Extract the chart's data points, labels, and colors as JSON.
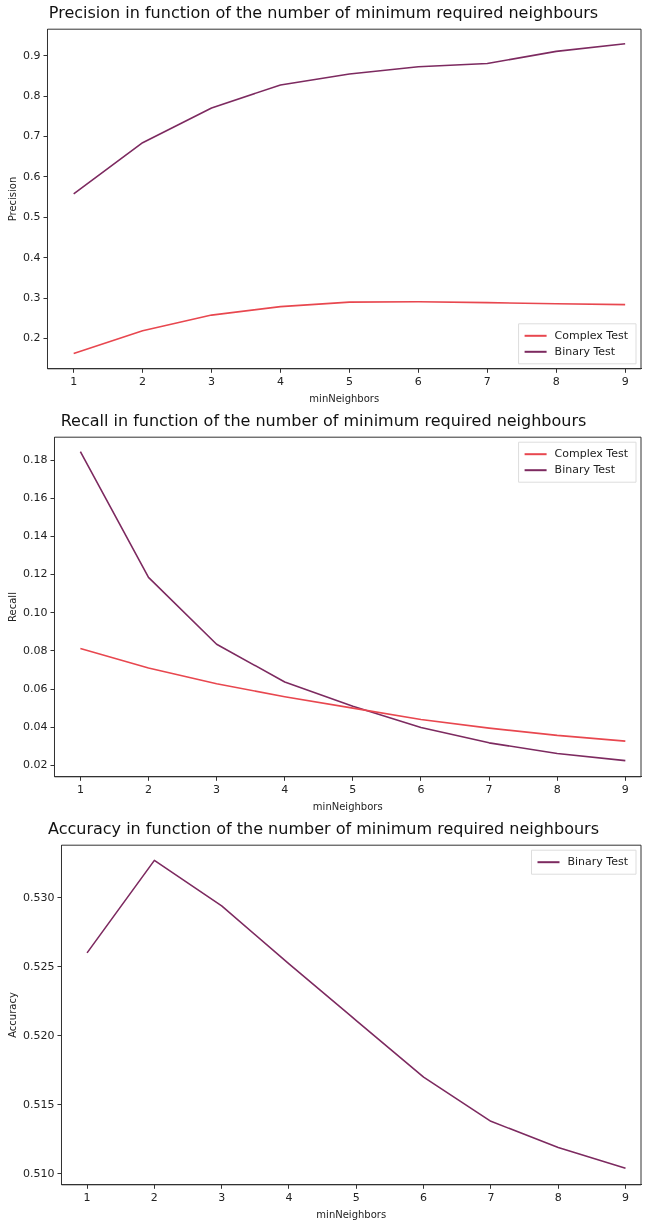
{
  "chart_data": [
    {
      "type": "line",
      "title": "Precision in function of the number of minimum required neighbours",
      "xlabel": "minNeighbors",
      "ylabel": "Precision",
      "x": [
        1,
        2,
        3,
        4,
        5,
        6,
        7,
        8,
        9
      ],
      "xlim": [
        0.62,
        9.23
      ],
      "xticks": [
        1,
        2,
        3,
        4,
        5,
        6,
        7,
        8,
        9
      ],
      "ylim": [
        0.125,
        0.966
      ],
      "yticks": [
        0.2,
        0.3,
        0.4,
        0.5,
        0.6,
        0.7,
        0.8,
        0.9
      ],
      "grid": false,
      "legend": "bottom right",
      "series": [
        {
          "name": "Complex Test",
          "color": "#e8474f",
          "values": [
            0.163,
            0.219,
            0.258,
            0.279,
            0.29,
            0.291,
            0.289,
            0.286,
            0.284
          ]
        },
        {
          "name": "Binary Test",
          "color": "#7d2a60",
          "values": [
            0.558,
            0.685,
            0.771,
            0.828,
            0.855,
            0.873,
            0.881,
            0.911,
            0.93
          ]
        }
      ]
    },
    {
      "type": "line",
      "title": "Recall in function of the number of minimum required neighbours",
      "xlabel": "minNeighbors",
      "ylabel": "Recall",
      "x": [
        1,
        2,
        3,
        4,
        5,
        6,
        7,
        8,
        9
      ],
      "xlim": [
        0.62,
        9.23
      ],
      "xticks": [
        1,
        2,
        3,
        4,
        5,
        6,
        7,
        8,
        9
      ],
      "ylim": [
        0.014,
        0.192
      ],
      "yticks": [
        {
          "value": 0.02,
          "label": "0.02"
        },
        {
          "value": 0.04,
          "label": "0.04"
        },
        {
          "value": 0.06,
          "label": "0.06"
        },
        {
          "value": 0.08,
          "label": "0.08"
        },
        {
          "value": 0.1,
          "label": "0.10"
        },
        {
          "value": 0.12,
          "label": "0.12"
        },
        {
          "value": 0.14,
          "label": "0.14"
        },
        {
          "value": 0.16,
          "label": "0.16"
        },
        {
          "value": 0.18,
          "label": "0.18"
        }
      ],
      "grid": false,
      "legend": "top right",
      "series": [
        {
          "name": "Complex Test",
          "color": "#e8474f",
          "values": [
            0.0812,
            0.071,
            0.0628,
            0.056,
            0.05,
            0.044,
            0.0395,
            0.0357,
            0.0327
          ]
        },
        {
          "name": "Binary Test",
          "color": "#7d2a60",
          "values": [
            0.1845,
            0.1185,
            0.0835,
            0.0637,
            0.051,
            0.0398,
            0.0318,
            0.0262,
            0.0225
          ]
        }
      ]
    },
    {
      "type": "line",
      "title": "Accuracy in function of the number of minimum required neighbours",
      "xlabel": "minNeighbors",
      "ylabel": "Accuracy",
      "x": [
        1,
        2,
        3,
        4,
        5,
        6,
        7,
        8,
        9
      ],
      "xlim": [
        0.62,
        9.23
      ],
      "xticks": [
        1,
        2,
        3,
        4,
        5,
        6,
        7,
        8,
        9
      ],
      "ylim": [
        0.5092,
        0.5338
      ],
      "yticks": [
        {
          "value": 0.51,
          "label": "0.510"
        },
        {
          "value": 0.515,
          "label": "0.515"
        },
        {
          "value": 0.52,
          "label": "0.520"
        },
        {
          "value": 0.525,
          "label": "0.525"
        },
        {
          "value": 0.53,
          "label": "0.530"
        }
      ],
      "grid": false,
      "legend": "top right",
      "series": [
        {
          "name": "Binary Test",
          "color": "#7d2a60",
          "values": [
            0.526,
            0.5327,
            0.5294,
            0.5252,
            0.5211,
            0.517,
            0.5138,
            0.5119,
            0.5104
          ]
        }
      ]
    }
  ]
}
